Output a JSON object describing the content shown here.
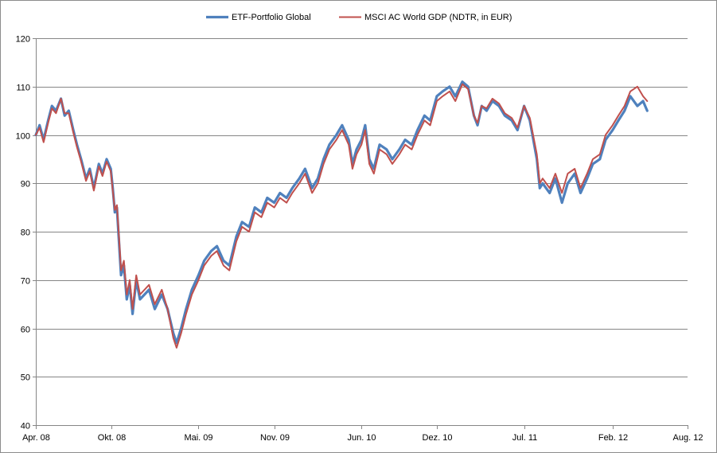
{
  "chart_data": {
    "type": "line",
    "title": "",
    "xlabel": "",
    "ylabel": "",
    "ylim": [
      40,
      120
    ],
    "y_ticks": [
      40,
      50,
      60,
      70,
      80,
      90,
      100,
      110,
      120
    ],
    "x_range": [
      "2008-04-01",
      "2012-08-01"
    ],
    "x_ticks": [
      {
        "date": "2008-04-01",
        "label": "Apr. 08"
      },
      {
        "date": "2008-10-01",
        "label": "Okt. 08"
      },
      {
        "date": "2009-05-01",
        "label": "Mai. 09"
      },
      {
        "date": "2009-11-01",
        "label": "Nov. 09"
      },
      {
        "date": "2010-06-01",
        "label": "Jun. 10"
      },
      {
        "date": "2010-12-01",
        "label": "Dez. 10"
      },
      {
        "date": "2011-07-01",
        "label": "Jul. 11"
      },
      {
        "date": "2012-02-01",
        "label": "Feb. 12"
      },
      {
        "date": "2012-08-01",
        "label": "Aug. 12"
      }
    ],
    "grid": "horizontal",
    "legend_position": "top-center",
    "series": [
      {
        "name": "ETF-Portfolio Global",
        "color": "#4f81bd",
        "points": [
          [
            "2008-04-01",
            100
          ],
          [
            "2008-04-10",
            102
          ],
          [
            "2008-04-20",
            99
          ],
          [
            "2008-05-01",
            103
          ],
          [
            "2008-05-10",
            106
          ],
          [
            "2008-05-20",
            105
          ],
          [
            "2008-06-01",
            107.5
          ],
          [
            "2008-06-10",
            104
          ],
          [
            "2008-06-20",
            105
          ],
          [
            "2008-07-01",
            101
          ],
          [
            "2008-07-10",
            98
          ],
          [
            "2008-07-20",
            95
          ],
          [
            "2008-08-01",
            91
          ],
          [
            "2008-08-10",
            93
          ],
          [
            "2008-08-20",
            89
          ],
          [
            "2008-09-01",
            94
          ],
          [
            "2008-09-10",
            92
          ],
          [
            "2008-09-20",
            95
          ],
          [
            "2008-09-30",
            93
          ],
          [
            "2008-10-05",
            89
          ],
          [
            "2008-10-10",
            84
          ],
          [
            "2008-10-15",
            85
          ],
          [
            "2008-10-20",
            78
          ],
          [
            "2008-10-25",
            71
          ],
          [
            "2008-11-01",
            73
          ],
          [
            "2008-11-08",
            66
          ],
          [
            "2008-11-15",
            69
          ],
          [
            "2008-11-22",
            63
          ],
          [
            "2008-12-01",
            70
          ],
          [
            "2008-12-10",
            66
          ],
          [
            "2009-01-01",
            68
          ],
          [
            "2009-01-15",
            64
          ],
          [
            "2009-02-01",
            67
          ],
          [
            "2009-02-15",
            64
          ],
          [
            "2009-03-01",
            59
          ],
          [
            "2009-03-09",
            57
          ],
          [
            "2009-03-20",
            60
          ],
          [
            "2009-04-01",
            64
          ],
          [
            "2009-04-15",
            68
          ],
          [
            "2009-05-01",
            71
          ],
          [
            "2009-05-15",
            74
          ],
          [
            "2009-06-01",
            76
          ],
          [
            "2009-06-15",
            77
          ],
          [
            "2009-07-01",
            74
          ],
          [
            "2009-07-15",
            73
          ],
          [
            "2009-08-01",
            79
          ],
          [
            "2009-08-15",
            82
          ],
          [
            "2009-09-01",
            81
          ],
          [
            "2009-09-15",
            85
          ],
          [
            "2009-10-01",
            84
          ],
          [
            "2009-10-15",
            87
          ],
          [
            "2009-11-01",
            86
          ],
          [
            "2009-11-15",
            88
          ],
          [
            "2009-12-01",
            87
          ],
          [
            "2009-12-15",
            89
          ],
          [
            "2010-01-01",
            91
          ],
          [
            "2010-01-15",
            93
          ],
          [
            "2010-02-01",
            89
          ],
          [
            "2010-02-15",
            91
          ],
          [
            "2010-03-01",
            95
          ],
          [
            "2010-03-15",
            98
          ],
          [
            "2010-04-01",
            100
          ],
          [
            "2010-04-15",
            102
          ],
          [
            "2010-05-01",
            99
          ],
          [
            "2010-05-10",
            94
          ],
          [
            "2010-05-20",
            97
          ],
          [
            "2010-06-01",
            99
          ],
          [
            "2010-06-10",
            102
          ],
          [
            "2010-06-20",
            95
          ],
          [
            "2010-07-01",
            93
          ],
          [
            "2010-07-15",
            98
          ],
          [
            "2010-08-01",
            97
          ],
          [
            "2010-08-15",
            95
          ],
          [
            "2010-09-01",
            97
          ],
          [
            "2010-09-15",
            99
          ],
          [
            "2010-10-01",
            98
          ],
          [
            "2010-10-15",
            101
          ],
          [
            "2010-11-01",
            104
          ],
          [
            "2010-11-15",
            103
          ],
          [
            "2010-12-01",
            108
          ],
          [
            "2010-12-15",
            109
          ],
          [
            "2011-01-01",
            110
          ],
          [
            "2011-01-15",
            108
          ],
          [
            "2011-02-01",
            111
          ],
          [
            "2011-02-15",
            110
          ],
          [
            "2011-03-01",
            104
          ],
          [
            "2011-03-10",
            102
          ],
          [
            "2011-03-20",
            106
          ],
          [
            "2011-04-01",
            105
          ],
          [
            "2011-04-15",
            107
          ],
          [
            "2011-05-01",
            106
          ],
          [
            "2011-05-15",
            104
          ],
          [
            "2011-06-01",
            103
          ],
          [
            "2011-06-15",
            101
          ],
          [
            "2011-07-01",
            106
          ],
          [
            "2011-07-15",
            103
          ],
          [
            "2011-08-01",
            95
          ],
          [
            "2011-08-08",
            89
          ],
          [
            "2011-08-15",
            90
          ],
          [
            "2011-09-01",
            88
          ],
          [
            "2011-09-15",
            91
          ],
          [
            "2011-10-01",
            86
          ],
          [
            "2011-10-15",
            90
          ],
          [
            "2011-11-01",
            92
          ],
          [
            "2011-11-15",
            88
          ],
          [
            "2011-12-01",
            91
          ],
          [
            "2011-12-15",
            94
          ],
          [
            "2012-01-01",
            95
          ],
          [
            "2012-01-15",
            99
          ],
          [
            "2012-02-01",
            101
          ],
          [
            "2012-02-15",
            103
          ],
          [
            "2012-03-01",
            105
          ],
          [
            "2012-03-15",
            108
          ],
          [
            "2012-04-01",
            106
          ],
          [
            "2012-04-15",
            107
          ],
          [
            "2012-04-25",
            105
          ]
        ]
      },
      {
        "name": "MSCI AC World GDP (NDTR, in EUR)",
        "color": "#c0504d",
        "points": [
          [
            "2008-04-01",
            100
          ],
          [
            "2008-04-10",
            101.5
          ],
          [
            "2008-04-20",
            98.5
          ],
          [
            "2008-05-01",
            102.5
          ],
          [
            "2008-05-10",
            105.5
          ],
          [
            "2008-05-20",
            104.5
          ],
          [
            "2008-06-01",
            107.5
          ],
          [
            "2008-06-10",
            104.5
          ],
          [
            "2008-06-20",
            104.5
          ],
          [
            "2008-07-01",
            100.5
          ],
          [
            "2008-07-10",
            97.5
          ],
          [
            "2008-07-20",
            94.5
          ],
          [
            "2008-08-01",
            90.5
          ],
          [
            "2008-08-10",
            92.5
          ],
          [
            "2008-08-20",
            88.5
          ],
          [
            "2008-09-01",
            93.5
          ],
          [
            "2008-09-10",
            91.5
          ],
          [
            "2008-09-20",
            94.5
          ],
          [
            "2008-09-30",
            92.5
          ],
          [
            "2008-10-05",
            88.5
          ],
          [
            "2008-10-10",
            84.5
          ],
          [
            "2008-10-15",
            85.5
          ],
          [
            "2008-10-20",
            79
          ],
          [
            "2008-10-25",
            72
          ],
          [
            "2008-11-01",
            74
          ],
          [
            "2008-11-08",
            67
          ],
          [
            "2008-11-15",
            70
          ],
          [
            "2008-11-22",
            64
          ],
          [
            "2008-12-01",
            71
          ],
          [
            "2008-12-10",
            67
          ],
          [
            "2009-01-01",
            69
          ],
          [
            "2009-01-15",
            65
          ],
          [
            "2009-02-01",
            68
          ],
          [
            "2009-02-15",
            64
          ],
          [
            "2009-03-01",
            58
          ],
          [
            "2009-03-09",
            56
          ],
          [
            "2009-03-20",
            59
          ],
          [
            "2009-04-01",
            63
          ],
          [
            "2009-04-15",
            67
          ],
          [
            "2009-05-01",
            70
          ],
          [
            "2009-05-15",
            73
          ],
          [
            "2009-06-01",
            75
          ],
          [
            "2009-06-15",
            76
          ],
          [
            "2009-07-01",
            73
          ],
          [
            "2009-07-15",
            72
          ],
          [
            "2009-08-01",
            78
          ],
          [
            "2009-08-15",
            81
          ],
          [
            "2009-09-01",
            80
          ],
          [
            "2009-09-15",
            84
          ],
          [
            "2009-10-01",
            83
          ],
          [
            "2009-10-15",
            86
          ],
          [
            "2009-11-01",
            85
          ],
          [
            "2009-11-15",
            87
          ],
          [
            "2009-12-01",
            86
          ],
          [
            "2009-12-15",
            88
          ],
          [
            "2010-01-01",
            90
          ],
          [
            "2010-01-15",
            92
          ],
          [
            "2010-02-01",
            88
          ],
          [
            "2010-02-15",
            90
          ],
          [
            "2010-03-01",
            94
          ],
          [
            "2010-03-15",
            97
          ],
          [
            "2010-04-01",
            99
          ],
          [
            "2010-04-15",
            101
          ],
          [
            "2010-05-01",
            98
          ],
          [
            "2010-05-10",
            93
          ],
          [
            "2010-05-20",
            96
          ],
          [
            "2010-06-01",
            98
          ],
          [
            "2010-06-10",
            101
          ],
          [
            "2010-06-20",
            94
          ],
          [
            "2010-07-01",
            92
          ],
          [
            "2010-07-15",
            97
          ],
          [
            "2010-08-01",
            96
          ],
          [
            "2010-08-15",
            94
          ],
          [
            "2010-09-01",
            96
          ],
          [
            "2010-09-15",
            98
          ],
          [
            "2010-10-01",
            97
          ],
          [
            "2010-10-15",
            100
          ],
          [
            "2010-11-01",
            103
          ],
          [
            "2010-11-15",
            102
          ],
          [
            "2010-12-01",
            107
          ],
          [
            "2010-12-15",
            108
          ],
          [
            "2011-01-01",
            109
          ],
          [
            "2011-01-15",
            107
          ],
          [
            "2011-02-01",
            110.5
          ],
          [
            "2011-02-15",
            109.5
          ],
          [
            "2011-03-01",
            104
          ],
          [
            "2011-03-10",
            102.5
          ],
          [
            "2011-03-20",
            106
          ],
          [
            "2011-04-01",
            105.5
          ],
          [
            "2011-04-15",
            107.5
          ],
          [
            "2011-05-01",
            106.5
          ],
          [
            "2011-05-15",
            104.5
          ],
          [
            "2011-06-01",
            103.5
          ],
          [
            "2011-06-15",
            101.5
          ],
          [
            "2011-07-01",
            106
          ],
          [
            "2011-07-15",
            103.5
          ],
          [
            "2011-08-01",
            96
          ],
          [
            "2011-08-08",
            90
          ],
          [
            "2011-08-15",
            91
          ],
          [
            "2011-09-01",
            89
          ],
          [
            "2011-09-15",
            92
          ],
          [
            "2011-10-01",
            88
          ],
          [
            "2011-10-15",
            92
          ],
          [
            "2011-11-01",
            93
          ],
          [
            "2011-11-15",
            89
          ],
          [
            "2011-12-01",
            92
          ],
          [
            "2011-12-15",
            95
          ],
          [
            "2012-01-01",
            96
          ],
          [
            "2012-01-15",
            100
          ],
          [
            "2012-02-01",
            102
          ],
          [
            "2012-02-15",
            104
          ],
          [
            "2012-03-01",
            106
          ],
          [
            "2012-03-15",
            109
          ],
          [
            "2012-04-01",
            110
          ],
          [
            "2012-04-15",
            108
          ],
          [
            "2012-04-25",
            107
          ]
        ]
      }
    ]
  }
}
